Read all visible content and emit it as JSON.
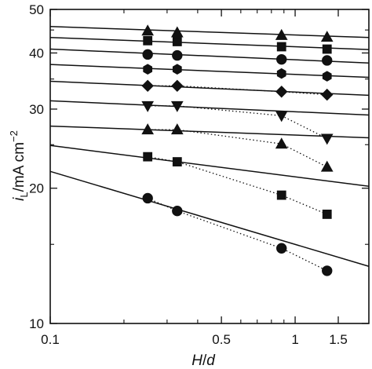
{
  "chart_data": {
    "type": "scatter",
    "title": "",
    "xlabel": "H/d",
    "ylabel": "iL/mA cm−2",
    "ylabel_parts": {
      "main": "i",
      "sub": "L",
      "unit": "/mA cm",
      "sup": "−2"
    },
    "xlabel_parts": {
      "main": "H",
      "sep": "/",
      "second": "d"
    },
    "x_scale": "log",
    "y_scale": "log",
    "xlim": [
      0.1,
      2.0
    ],
    "ylim": [
      10,
      50
    ],
    "x_ticks": [
      {
        "value": 0.1,
        "label": "0.1"
      },
      {
        "value": 0.5,
        "label": "0.5"
      },
      {
        "value": 1,
        "label": "1"
      },
      {
        "value": 1.5,
        "label": "1.5"
      }
    ],
    "x_minor_ticks": [
      0.2,
      0.3,
      0.4,
      0.6,
      0.7,
      0.8,
      0.9,
      2.0
    ],
    "y_ticks": [
      {
        "value": 10,
        "label": "10"
      },
      {
        "value": 20,
        "label": "20"
      },
      {
        "value": 30,
        "label": "30"
      },
      {
        "value": 40,
        "label": "40"
      },
      {
        "value": 50,
        "label": "50"
      }
    ],
    "y_minor_ticks": [
      15,
      25,
      35,
      45
    ],
    "grid": false,
    "legend": "none",
    "colors": {
      "ink": "#111111",
      "background": "#ffffff"
    },
    "series": [
      {
        "marker": "circle",
        "x": [
          0.25,
          0.33,
          0.88,
          1.35
        ],
        "y": [
          19.0,
          17.8,
          14.7,
          13.1
        ],
        "fit_line": {
          "x": [
            0.1,
            2.0
          ],
          "y": [
            21.8,
            13.4
          ]
        },
        "dotted": true
      },
      {
        "marker": "square",
        "x": [
          0.25,
          0.33,
          0.88,
          1.35
        ],
        "y": [
          23.5,
          22.9,
          19.3,
          17.5
        ],
        "fit_line": {
          "x": [
            0.1,
            2.0
          ],
          "y": [
            24.9,
            20.2
          ]
        },
        "dotted": true
      },
      {
        "marker": "triangle-up",
        "x": [
          0.25,
          0.33,
          0.88,
          1.35
        ],
        "y": [
          27.0,
          27.0,
          25.1,
          22.3
        ],
        "fit_line": {
          "x": [
            0.1,
            2.0
          ],
          "y": [
            27.5,
            25.9
          ]
        },
        "dotted": true
      },
      {
        "marker": "triangle-down",
        "x": [
          0.25,
          0.33,
          0.88,
          1.35
        ],
        "y": [
          30.5,
          30.5,
          29.0,
          25.8
        ],
        "fit_line": {
          "x": [
            0.1,
            2.0
          ],
          "y": [
            31.3,
            29.1
          ]
        },
        "dotted": true
      },
      {
        "marker": "diamond",
        "x": [
          0.25,
          0.33,
          0.88,
          1.35
        ],
        "y": [
          33.8,
          33.8,
          32.8,
          32.3
        ],
        "fit_line": {
          "x": [
            0.1,
            2.0
          ],
          "y": [
            34.6,
            32.2
          ]
        },
        "dotted": true
      },
      {
        "marker": "hexagon",
        "x": [
          0.25,
          0.33,
          0.88,
          1.35
        ],
        "y": [
          36.8,
          36.8,
          36.0,
          35.5
        ],
        "fit_line": {
          "x": [
            0.1,
            2.0
          ],
          "y": [
            37.7,
            35.3
          ]
        },
        "dotted": false
      },
      {
        "marker": "circle",
        "x": [
          0.25,
          0.33,
          0.88,
          1.35
        ],
        "y": [
          39.7,
          39.5,
          38.7,
          38.5
        ],
        "fit_line": {
          "x": [
            0.1,
            2.0
          ],
          "y": [
            40.8,
            38.0
          ]
        },
        "dotted": false
      },
      {
        "marker": "square",
        "x": [
          0.25,
          0.33,
          0.88,
          1.35
        ],
        "y": [
          42.6,
          42.4,
          41.3,
          40.8
        ],
        "fit_line": {
          "x": [
            0.1,
            2.0
          ],
          "y": [
            43.3,
            40.7
          ]
        },
        "dotted": false
      },
      {
        "marker": "triangle-up",
        "x": [
          0.25,
          0.33,
          0.88,
          1.35
        ],
        "y": [
          44.8,
          44.4,
          43.8,
          43.4
        ],
        "fit_line": {
          "x": [
            0.1,
            2.0
          ],
          "y": [
            45.8,
            43.3
          ]
        },
        "dotted": false
      }
    ]
  }
}
